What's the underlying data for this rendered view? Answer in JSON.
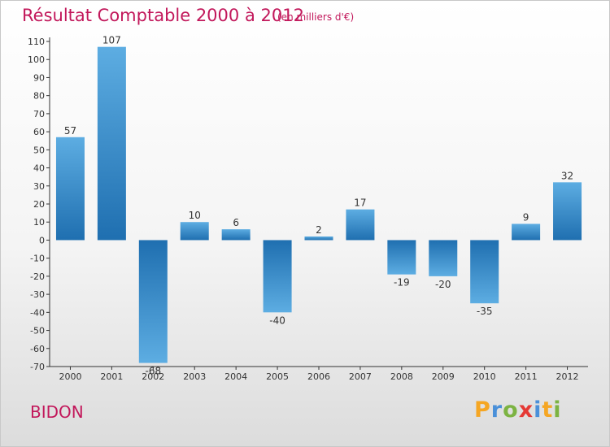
{
  "header": {
    "title": "Résultat Comptable 2000 à 2012",
    "subtitle": "(en milliers d'€)"
  },
  "footer": {
    "commune": "BIDON",
    "logo_letters": [
      "P",
      "r",
      "o",
      "x",
      "i",
      "t",
      "i"
    ],
    "logo_colors": [
      "#f5a623",
      "#4a90d9",
      "#7cb342",
      "#e53935",
      "#4a90d9",
      "#f5a623",
      "#7cb342"
    ]
  },
  "colors": {
    "title": "#c2185b",
    "bar_light": "#5dade2",
    "bar_dark": "#1f6fb0",
    "axis": "#333333"
  },
  "chart_data": {
    "type": "bar",
    "title": "Résultat Comptable 2000 à 2012",
    "subtitle": "(en milliers d'€)",
    "categories": [
      "2000",
      "2001",
      "2002",
      "2003",
      "2004",
      "2005",
      "2006",
      "2007",
      "2008",
      "2009",
      "2010",
      "2011",
      "2012"
    ],
    "values": [
      57,
      107,
      -68,
      10,
      6,
      -40,
      2,
      17,
      -19,
      -20,
      -35,
      9,
      32
    ],
    "value_labels": [
      "57",
      "107",
      "-68",
      "10",
      "6",
      "-40",
      "2",
      "17",
      "-19",
      "-20",
      "-35",
      "9",
      "32"
    ],
    "y_ticks": [
      "110",
      "100",
      "90",
      "80",
      "70",
      "60",
      "50",
      "40",
      "30",
      "20",
      "10",
      "0",
      "-10",
      "-20",
      "-30",
      "-40",
      "-50",
      "-60",
      "-70"
    ],
    "ylim": [
      -70,
      110
    ],
    "xlabel": "",
    "ylabel": "",
    "grid": false,
    "legend": "none"
  }
}
